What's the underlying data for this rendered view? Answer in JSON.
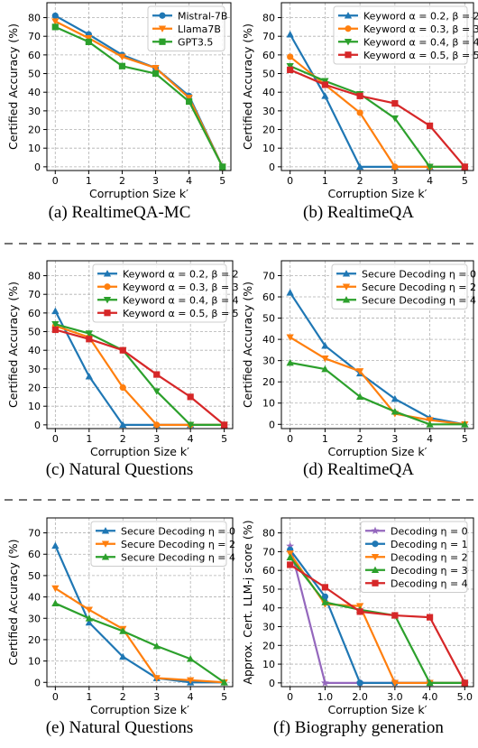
{
  "chart_data": [
    {
      "type": "line",
      "caption": "(a) RealtimeQA-MC",
      "xlabel": "Corruption Size k′",
      "ylabel": "Certified Accuracy (%)",
      "x": [
        0,
        1,
        2,
        3,
        4,
        5
      ],
      "x_ticks": [
        "0",
        "1",
        "2",
        "3",
        "4",
        "5"
      ],
      "xlim": [
        -0.25,
        5.25
      ],
      "ylim": [
        -2,
        88
      ],
      "y_ticks": [
        0,
        10,
        20,
        30,
        40,
        50,
        60,
        70,
        80
      ],
      "grid": true,
      "legend_position": "top-right",
      "series": [
        {
          "name": "Mistral-7B",
          "color": "#1f77b4",
          "marker": "circle",
          "values": [
            81,
            71,
            60,
            53,
            38,
            0
          ]
        },
        {
          "name": "Llama7B",
          "color": "#ff7f0e",
          "marker": "triangle-down",
          "values": [
            78,
            69,
            59,
            53,
            37,
            0
          ]
        },
        {
          "name": "GPT3.5",
          "color": "#2ca02c",
          "marker": "square",
          "values": [
            75,
            67,
            54,
            50,
            35,
            0
          ]
        }
      ]
    },
    {
      "type": "line",
      "caption": "(b) RealtimeQA",
      "xlabel": "Corruption Size k′",
      "ylabel": "Certified Accuracy (%)",
      "x": [
        0,
        1,
        2,
        3,
        4,
        5
      ],
      "x_ticks": [
        "0",
        "1",
        "2",
        "3",
        "4",
        "5"
      ],
      "xlim": [
        -0.25,
        5.25
      ],
      "ylim": [
        -2,
        88
      ],
      "y_ticks": [
        0,
        10,
        20,
        30,
        40,
        50,
        60,
        70,
        80
      ],
      "grid": true,
      "legend_position": "top-right",
      "series": [
        {
          "name": "Keyword α = 0.2, β = 2",
          "color": "#1f77b4",
          "marker": "triangle-up",
          "values": [
            71,
            38,
            0,
            0,
            0,
            0
          ]
        },
        {
          "name": "Keyword α = 0.3, β = 3",
          "color": "#ff7f0e",
          "marker": "circle",
          "values": [
            59,
            44,
            29,
            0,
            0,
            0
          ]
        },
        {
          "name": "Keyword α = 0.4, β = 4",
          "color": "#2ca02c",
          "marker": "triangle-down",
          "values": [
            54,
            46,
            39,
            26,
            0,
            0
          ]
        },
        {
          "name": "Keyword α = 0.5, β = 5",
          "color": "#d62728",
          "marker": "square",
          "values": [
            52,
            44,
            38,
            34,
            22,
            0
          ]
        }
      ]
    },
    {
      "type": "line",
      "caption": "(c) Natural Questions",
      "xlabel": "Corruption Size k′",
      "ylabel": "Certified Accuracy (%)",
      "x": [
        0,
        1,
        2,
        3,
        4,
        5
      ],
      "x_ticks": [
        "0",
        "1",
        "2",
        "3",
        "4",
        "5"
      ],
      "xlim": [
        -0.25,
        5.25
      ],
      "ylim": [
        -2,
        88
      ],
      "y_ticks": [
        0,
        10,
        20,
        30,
        40,
        50,
        60,
        70,
        80
      ],
      "grid": true,
      "legend_position": "top-right",
      "series": [
        {
          "name": "Keyword α = 0.2, β = 2",
          "color": "#1f77b4",
          "marker": "triangle-up",
          "values": [
            61,
            26,
            0,
            0,
            0,
            0
          ]
        },
        {
          "name": "Keyword α = 0.3, β = 3",
          "color": "#ff7f0e",
          "marker": "circle",
          "values": [
            53,
            47,
            20,
            0,
            0,
            0
          ]
        },
        {
          "name": "Keyword α = 0.4, β = 4",
          "color": "#2ca02c",
          "marker": "triangle-down",
          "values": [
            54,
            49,
            40,
            18,
            0,
            0
          ]
        },
        {
          "name": "Keyword α = 0.5, β = 5",
          "color": "#d62728",
          "marker": "square",
          "values": [
            51,
            46,
            40,
            27,
            15,
            0
          ]
        }
      ]
    },
    {
      "type": "line",
      "caption": "(d) RealtimeQA",
      "xlabel": "Corruption Size k′",
      "ylabel": "Certified Accuracy (%)",
      "x": [
        0,
        1,
        2,
        3,
        4,
        5
      ],
      "x_ticks": [
        "0",
        "1",
        "2",
        "3",
        "4",
        "5"
      ],
      "xlim": [
        -0.25,
        5.25
      ],
      "ylim": [
        -2,
        77
      ],
      "y_ticks": [
        0,
        10,
        20,
        30,
        40,
        50,
        60,
        70
      ],
      "grid": true,
      "legend_position": "top-right",
      "series": [
        {
          "name": "Secure Decoding η = 0",
          "color": "#1f77b4",
          "marker": "triangle-up",
          "values": [
            62,
            37,
            24,
            12,
            3,
            0
          ]
        },
        {
          "name": "Secure Decoding η = 2",
          "color": "#ff7f0e",
          "marker": "triangle-down",
          "values": [
            41,
            31,
            25,
            5,
            2,
            0
          ]
        },
        {
          "name": "Secure Decoding η = 4",
          "color": "#2ca02c",
          "marker": "triangle-up",
          "values": [
            29,
            26,
            13,
            6,
            0,
            0
          ]
        }
      ]
    },
    {
      "type": "line",
      "caption": "(e) Natural Questions",
      "xlabel": "Corruption Size k′",
      "ylabel": "Certified Accuracy (%)",
      "x": [
        0,
        1,
        2,
        3,
        4,
        5
      ],
      "x_ticks": [
        "0",
        "1",
        "2",
        "3",
        "4",
        "5"
      ],
      "xlim": [
        -0.25,
        5.25
      ],
      "ylim": [
        -2,
        77
      ],
      "y_ticks": [
        0,
        10,
        20,
        30,
        40,
        50,
        60,
        70
      ],
      "grid": true,
      "legend_position": "top-right",
      "series": [
        {
          "name": "Secure Decoding η = 0",
          "color": "#1f77b4",
          "marker": "triangle-up",
          "values": [
            64,
            28,
            12,
            2,
            0,
            0
          ]
        },
        {
          "name": "Secure Decoding η = 2",
          "color": "#ff7f0e",
          "marker": "triangle-down",
          "values": [
            44,
            34,
            25,
            2,
            1,
            0
          ]
        },
        {
          "name": "Secure Decoding η = 4",
          "color": "#2ca02c",
          "marker": "triangle-up",
          "values": [
            37,
            30,
            24,
            17,
            11,
            0
          ]
        }
      ]
    },
    {
      "type": "line",
      "caption": "(f) Biography generation",
      "xlabel": "Corruption Size k′",
      "ylabel": "Approx. Cert. LLM-j score (%)",
      "x": [
        0,
        1,
        2,
        3,
        4,
        5
      ],
      "x_ticks": [
        "0",
        "1.0",
        "2.0",
        "3.0",
        "4.0",
        "5.0"
      ],
      "xlim": [
        -0.25,
        5.25
      ],
      "ylim": [
        -2,
        88
      ],
      "y_ticks": [
        0,
        10,
        20,
        30,
        40,
        50,
        60,
        70,
        80
      ],
      "grid": true,
      "legend_position": "top-right",
      "series": [
        {
          "name": "Decoding η = 0",
          "color": "#9467bd",
          "marker": "star",
          "values": [
            73,
            0,
            0,
            0,
            0,
            0
          ]
        },
        {
          "name": "Decoding η = 1",
          "color": "#1f77b4",
          "marker": "circle",
          "values": [
            71,
            46,
            0,
            0,
            0,
            0
          ]
        },
        {
          "name": "Decoding η = 2",
          "color": "#ff7f0e",
          "marker": "triangle-down",
          "values": [
            69,
            42,
            41,
            0,
            0,
            0
          ]
        },
        {
          "name": "Decoding η = 3",
          "color": "#2ca02c",
          "marker": "triangle-up",
          "values": [
            67,
            43,
            39,
            36,
            0,
            0
          ]
        },
        {
          "name": "Decoding η = 4",
          "color": "#d62728",
          "marker": "square",
          "values": [
            63,
            51,
            38,
            36,
            35,
            0
          ]
        }
      ]
    }
  ]
}
